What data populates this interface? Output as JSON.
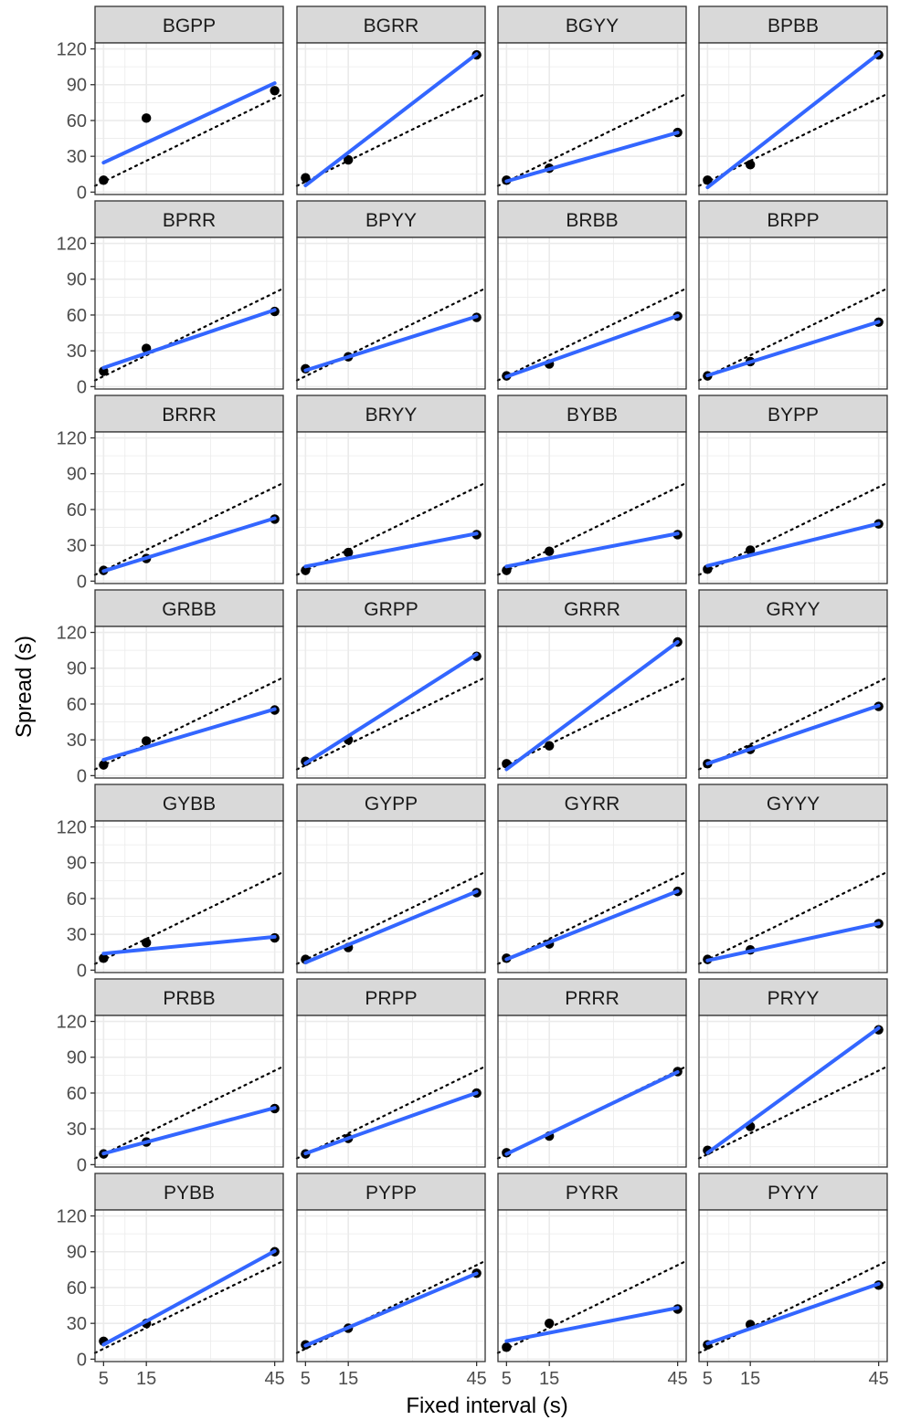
{
  "chart_data": {
    "type": "scatter",
    "facet_layout": "7 rows x 4 columns",
    "xlabel": "Fixed interval (s)",
    "ylabel": "Spread (s)",
    "x_ticks": [
      5,
      15,
      45
    ],
    "y_ticks": [
      0,
      30,
      60,
      90,
      120
    ],
    "xlim": [
      3,
      47
    ],
    "ylim": [
      -2,
      125
    ],
    "grid": true,
    "reference_line": {
      "style": "dotted",
      "color": "#000000",
      "slope": 1.75,
      "intercept": 0
    },
    "colors": {
      "points": "#000000",
      "fit_line": "#3366FF",
      "strip_fill": "#D9D9D9",
      "frame": "#333333",
      "grid": "#EBEBEB"
    },
    "panels": [
      {
        "name": "BGPP",
        "x": [
          5,
          15,
          45
        ],
        "y": [
          10,
          62,
          85
        ],
        "fit": [
          24.7,
          91.3
        ]
      },
      {
        "name": "BGRR",
        "x": [
          5,
          15,
          45
        ],
        "y": [
          12,
          27,
          115
        ],
        "fit": [
          5.6,
          115.7
        ]
      },
      {
        "name": "BGYY",
        "x": [
          5,
          15,
          45
        ],
        "y": [
          10,
          20,
          50
        ],
        "fit": [
          9.1,
          49.9
        ]
      },
      {
        "name": "BPBB",
        "x": [
          5,
          15,
          45
        ],
        "y": [
          10,
          23,
          115
        ],
        "fit": [
          4.0,
          116.0
        ]
      },
      {
        "name": "BPRR",
        "x": [
          5,
          15,
          45
        ],
        "y": [
          13,
          32,
          63
        ],
        "fit": [
          15.8,
          64.3
        ]
      },
      {
        "name": "BPYY",
        "x": [
          5,
          15,
          45
        ],
        "y": [
          15,
          25,
          58
        ],
        "fit": [
          13.6,
          58.8
        ]
      },
      {
        "name": "BRBB",
        "x": [
          5,
          15,
          45
        ],
        "y": [
          9,
          19,
          59
        ],
        "fit": [
          8.3,
          59.3
        ]
      },
      {
        "name": "BRPP",
        "x": [
          5,
          15,
          45
        ],
        "y": [
          9,
          21,
          54
        ],
        "fit": [
          9.4,
          54.3
        ]
      },
      {
        "name": "BRRR",
        "x": [
          5,
          15,
          45
        ],
        "y": [
          9,
          19,
          52
        ],
        "fit": [
          8.4,
          52.7
        ]
      },
      {
        "name": "BRYY",
        "x": [
          5,
          15,
          45
        ],
        "y": [
          9,
          24,
          39
        ],
        "fit": [
          12.3,
          39.9
        ]
      },
      {
        "name": "BYBB",
        "x": [
          5,
          15,
          45
        ],
        "y": [
          9,
          25,
          39
        ],
        "fit": [
          12.3,
          39.9
        ]
      },
      {
        "name": "BYPP",
        "x": [
          5,
          15,
          45
        ],
        "y": [
          10,
          26,
          48
        ],
        "fit": [
          12.9,
          48.2
        ]
      },
      {
        "name": "GRBB",
        "x": [
          5,
          15,
          45
        ],
        "y": [
          9,
          29,
          55
        ],
        "fit": [
          13.3,
          55.7
        ]
      },
      {
        "name": "GRPP",
        "x": [
          5,
          15,
          45
        ],
        "y": [
          12,
          30,
          100
        ],
        "fit": [
          10.4,
          101.6
        ]
      },
      {
        "name": "GRRR",
        "x": [
          5,
          15,
          45
        ],
        "y": [
          10,
          25,
          112
        ],
        "fit": [
          5.3,
          112.0
        ]
      },
      {
        "name": "GRYY",
        "x": [
          5,
          15,
          45
        ],
        "y": [
          10,
          22,
          58
        ],
        "fit": [
          10.1,
          58.6
        ]
      },
      {
        "name": "GYBB",
        "x": [
          5,
          15,
          45
        ],
        "y": [
          10,
          23,
          27
        ],
        "fit": [
          13.9,
          27.9
        ]
      },
      {
        "name": "GYPP",
        "x": [
          5,
          15,
          45
        ],
        "y": [
          9,
          19,
          65
        ],
        "fit": [
          6.4,
          65.9
        ]
      },
      {
        "name": "GYRR",
        "x": [
          5,
          15,
          45
        ],
        "y": [
          10,
          22,
          66
        ],
        "fit": [
          9.1,
          66.2
        ]
      },
      {
        "name": "GYYY",
        "x": [
          5,
          15,
          45
        ],
        "y": [
          9,
          17,
          39
        ],
        "fit": [
          8.1,
          39.2
        ]
      },
      {
        "name": "PRBB",
        "x": [
          5,
          15,
          45
        ],
        "y": [
          9,
          19,
          47
        ],
        "fit": [
          9.3,
          47.6
        ]
      },
      {
        "name": "PRPP",
        "x": [
          5,
          15,
          45
        ],
        "y": [
          9,
          22,
          60
        ],
        "fit": [
          9.4,
          60.2
        ]
      },
      {
        "name": "PRRR",
        "x": [
          5,
          15,
          45
        ],
        "y": [
          10,
          24,
          78
        ],
        "fit": [
          8.9,
          77.6
        ]
      },
      {
        "name": "PRYY",
        "x": [
          5,
          15,
          45
        ],
        "y": [
          12,
          32,
          113
        ],
        "fit": [
          9.9,
          114.5
        ]
      },
      {
        "name": "PYBB",
        "x": [
          5,
          15,
          45
        ],
        "y": [
          15,
          30,
          90
        ],
        "fit": [
          12.2,
          90.6
        ]
      },
      {
        "name": "PYPP",
        "x": [
          5,
          15,
          45
        ],
        "y": [
          12,
          26,
          72
        ],
        "fit": [
          11.4,
          71.8
        ]
      },
      {
        "name": "PYRR",
        "x": [
          5,
          15,
          45
        ],
        "y": [
          10,
          30,
          42
        ],
        "fit": [
          15.1,
          43.0
        ]
      },
      {
        "name": "PYYY",
        "x": [
          5,
          15,
          45
        ],
        "y": [
          12,
          29,
          62
        ],
        "fit": [
          13.1,
          63.1
        ]
      }
    ]
  }
}
